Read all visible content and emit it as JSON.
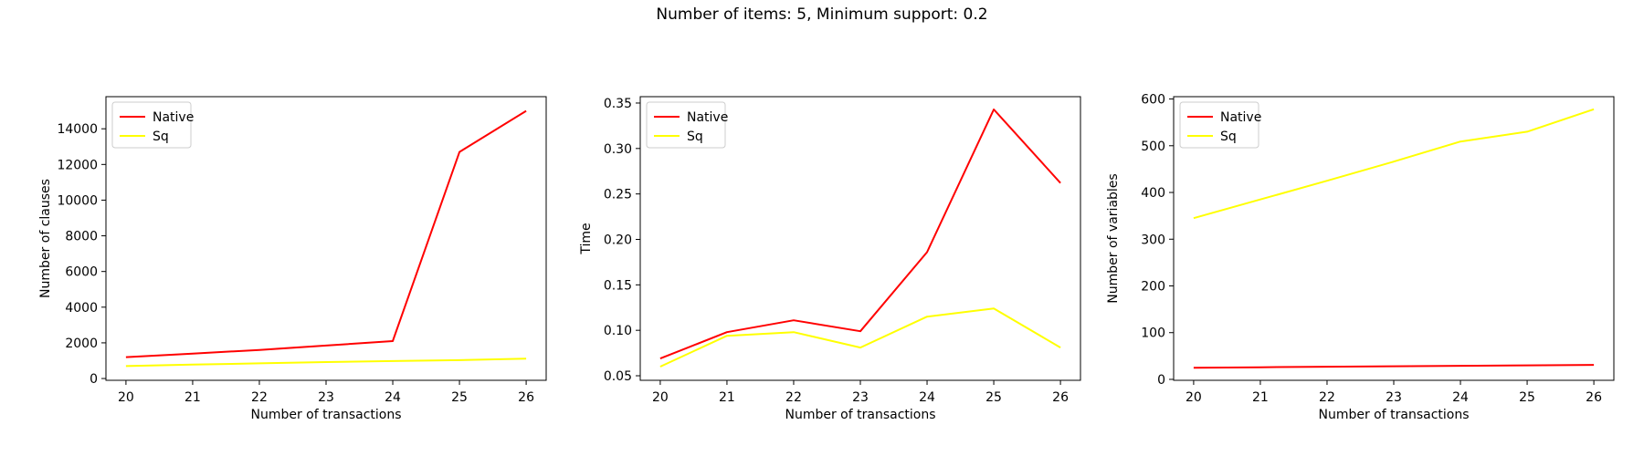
{
  "figure": {
    "title": "Number of items: 5, Minimum support: 0.2"
  },
  "colors": {
    "native": "#ff0000",
    "sq": "#ffff00"
  },
  "chart_data": [
    {
      "type": "line",
      "x": [
        20,
        21,
        22,
        23,
        24,
        25,
        26
      ],
      "xlabel": "Number of transactions",
      "ylabel": "Number of clauses",
      "xlim": [
        19.7,
        26.3
      ],
      "ylim": [
        -100,
        15800
      ],
      "xticks": [
        20,
        21,
        22,
        23,
        24,
        25,
        26
      ],
      "yticks": [
        0,
        2000,
        4000,
        6000,
        8000,
        10000,
        12000,
        14000
      ],
      "grid": false,
      "legend": "top-left",
      "series": [
        {
          "name": "Native",
          "color": "#ff0000",
          "values": [
            1200,
            1400,
            1600,
            1850,
            2100,
            12700,
            15000
          ]
        },
        {
          "name": "Sq",
          "color": "#ffff00",
          "values": [
            700,
            780,
            850,
            920,
            980,
            1030,
            1110
          ]
        }
      ]
    },
    {
      "type": "line",
      "x": [
        20,
        21,
        22,
        23,
        24,
        25,
        26
      ],
      "xlabel": "Number of transactions",
      "ylabel": "Time",
      "xlim": [
        19.7,
        26.3
      ],
      "ylim": [
        0.045,
        0.357
      ],
      "xticks": [
        20,
        21,
        22,
        23,
        24,
        25,
        26
      ],
      "yticks": [
        0.05,
        0.1,
        0.15,
        0.2,
        0.25,
        0.3,
        0.35
      ],
      "ytick_labels": [
        "0.05",
        "0.10",
        "0.15",
        "0.20",
        "0.25",
        "0.30",
        "0.35"
      ],
      "grid": false,
      "legend": "top-left",
      "series": [
        {
          "name": "Native",
          "color": "#ff0000",
          "values": [
            0.069,
            0.098,
            0.111,
            0.099,
            0.186,
            0.343,
            0.262
          ]
        },
        {
          "name": "Sq",
          "color": "#ffff00",
          "values": [
            0.06,
            0.094,
            0.098,
            0.081,
            0.115,
            0.124,
            0.081
          ]
        }
      ]
    },
    {
      "type": "line",
      "x": [
        20,
        21,
        22,
        23,
        24,
        25,
        26
      ],
      "xlabel": "Number of transactions",
      "ylabel": "Number of variables",
      "xlim": [
        19.7,
        26.3
      ],
      "ylim": [
        -2,
        605
      ],
      "xticks": [
        20,
        21,
        22,
        23,
        24,
        25,
        26
      ],
      "yticks": [
        0,
        100,
        200,
        300,
        400,
        500,
        600
      ],
      "grid": false,
      "legend": "top-left",
      "series": [
        {
          "name": "Native",
          "color": "#ff0000",
          "values": [
            25,
            26,
            27,
            28,
            29,
            30,
            31
          ]
        },
        {
          "name": "Sq",
          "color": "#ffff00",
          "values": [
            345,
            385,
            425,
            466,
            509,
            530,
            578
          ]
        }
      ]
    }
  ]
}
